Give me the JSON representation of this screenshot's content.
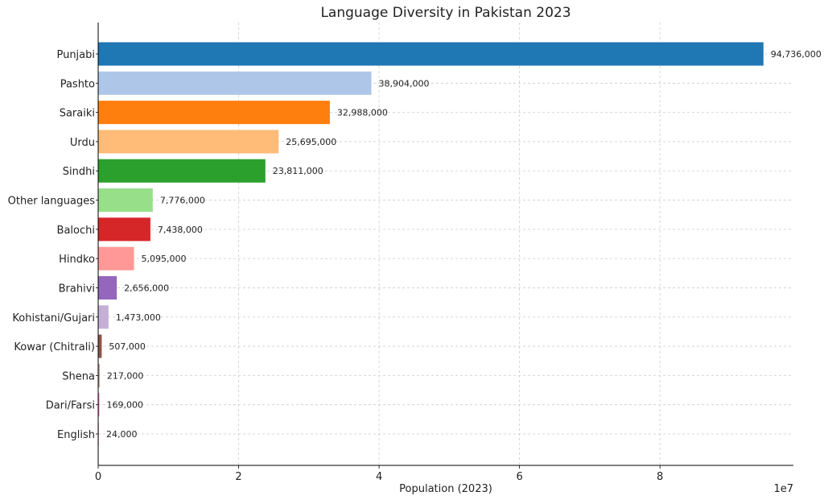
{
  "chart_data": {
    "type": "bar",
    "orientation": "horizontal",
    "title": "Language Diversity in Pakistan 2023",
    "xlabel": "Population (2023)",
    "ylabel": "",
    "x_scale_label": "1e7",
    "xlim": [
      0,
      99000000
    ],
    "x_ticks": [
      0,
      20000000,
      40000000,
      60000000,
      80000000
    ],
    "x_tick_labels": [
      "0",
      "2",
      "4",
      "6",
      "8"
    ],
    "grid": true,
    "categories": [
      "Punjabi",
      "Pashto",
      "Saraiki",
      "Urdu",
      "Sindhi",
      "Other languages",
      "Balochi",
      "Hindko",
      "Brahivi",
      "Kohistani/Gujari",
      "Kowar (Chitrali)",
      "Shena",
      "Dari/Farsi",
      "English"
    ],
    "values": [
      94736000,
      38904000,
      32988000,
      25695000,
      23811000,
      7776000,
      7438000,
      5095000,
      2656000,
      1473000,
      507000,
      217000,
      169000,
      24000
    ],
    "value_labels": [
      "94,736,000",
      "38,904,000",
      "32,988,000",
      "25,695,000",
      "23,811,000",
      "7,776,000",
      "7,438,000",
      "5,095,000",
      "2,656,000",
      "1,473,000",
      "507,000",
      "217,000",
      "169,000",
      "24,000"
    ],
    "colors": [
      "#1f77b4",
      "#aec7e8",
      "#ff7f0e",
      "#ffbb78",
      "#2ca02c",
      "#98df8a",
      "#d62728",
      "#ff9896",
      "#9467bd",
      "#c5b0d5",
      "#8c564b",
      "#c49c94",
      "#e377c2",
      "#f7b6d2"
    ]
  }
}
